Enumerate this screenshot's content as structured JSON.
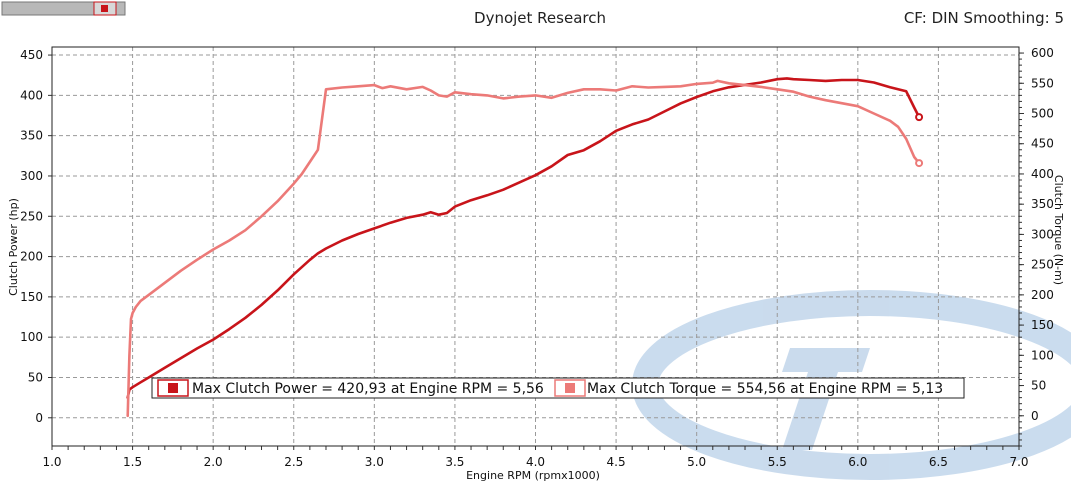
{
  "header": {
    "title": "Dynojet Research",
    "cf_info": "CF: DIN Smoothing: 5"
  },
  "colors": {
    "power": "#c8141a",
    "torque": "#ec7a78",
    "grid": "#9a9a9a",
    "watermark": "#9fbfe0",
    "plot_bg": "#ffffff"
  },
  "chart_data": {
    "type": "line",
    "xlabel": "Engine RPM (rpmx1000)",
    "ylabel": "Clutch Power (hp)",
    "y2label": "Clutch Torque (N-m)",
    "xlim": [
      1.0,
      7.0
    ],
    "ylim": [
      -35,
      460
    ],
    "y2lim": [
      -50,
      610
    ],
    "x_ticks": [
      "1.0",
      "1.5",
      "2.0",
      "2.5",
      "3.0",
      "3.5",
      "4.0",
      "4.5",
      "5.0",
      "5.5",
      "6.0",
      "6.5",
      "7.0"
    ],
    "y_ticks": [
      "0",
      "50",
      "100",
      "150",
      "200",
      "250",
      "300",
      "350",
      "400",
      "450"
    ],
    "y2_ticks": [
      "0",
      "50",
      "100",
      "150",
      "200",
      "250",
      "300",
      "350",
      "400",
      "450",
      "500",
      "550",
      "600"
    ],
    "grid": true,
    "series": [
      {
        "name": "Max Clutch Power",
        "axis": "left",
        "x": [
          1.47,
          1.48,
          1.5,
          1.55,
          1.6,
          1.7,
          1.8,
          1.9,
          2.0,
          2.1,
          2.2,
          2.3,
          2.4,
          2.5,
          2.6,
          2.65,
          2.7,
          2.8,
          2.9,
          3.0,
          3.1,
          3.2,
          3.3,
          3.35,
          3.4,
          3.45,
          3.5,
          3.6,
          3.7,
          3.8,
          3.9,
          4.0,
          4.1,
          4.2,
          4.3,
          4.4,
          4.5,
          4.6,
          4.7,
          4.8,
          4.9,
          5.0,
          5.1,
          5.2,
          5.3,
          5.4,
          5.5,
          5.56,
          5.6,
          5.7,
          5.8,
          5.9,
          6.0,
          6.1,
          6.2,
          6.3,
          6.35,
          6.38
        ],
        "values": [
          25,
          35,
          38,
          44,
          50,
          62,
          74,
          86,
          97,
          110,
          124,
          140,
          158,
          178,
          196,
          204,
          210,
          220,
          228,
          235,
          242,
          248,
          252,
          255,
          252,
          254,
          262,
          270,
          276,
          283,
          292,
          301,
          312,
          326,
          332,
          343,
          356,
          364,
          370,
          380,
          390,
          398,
          405,
          410,
          413,
          416,
          420,
          421,
          420,
          419,
          418,
          419,
          419,
          416,
          410,
          405,
          385,
          373
        ],
        "max_label": "Max Clutch Power = 420,93 at Engine RPM = 5,56"
      },
      {
        "name": "Max Clutch Torque",
        "axis": "right",
        "x": [
          1.47,
          1.48,
          1.49,
          1.5,
          1.52,
          1.55,
          1.6,
          1.7,
          1.8,
          1.9,
          2.0,
          2.1,
          2.2,
          2.3,
          2.4,
          2.5,
          2.55,
          2.6,
          2.65,
          2.7,
          2.8,
          2.9,
          3.0,
          3.05,
          3.1,
          3.2,
          3.3,
          3.35,
          3.4,
          3.45,
          3.5,
          3.6,
          3.7,
          3.8,
          3.9,
          4.0,
          4.1,
          4.2,
          4.3,
          4.4,
          4.5,
          4.6,
          4.7,
          4.8,
          4.9,
          5.0,
          5.1,
          5.13,
          5.2,
          5.3,
          5.4,
          5.5,
          5.6,
          5.7,
          5.8,
          5.9,
          6.0,
          6.1,
          6.2,
          6.25,
          6.3,
          6.35,
          6.38
        ],
        "values": [
          0,
          100,
          160,
          170,
          180,
          190,
          200,
          220,
          240,
          258,
          275,
          290,
          307,
          330,
          355,
          384,
          400,
          420,
          440,
          540,
          543,
          545,
          547,
          542,
          545,
          540,
          544,
          538,
          530,
          528,
          535,
          532,
          530,
          525,
          528,
          530,
          526,
          534,
          540,
          540,
          538,
          545,
          543,
          544,
          545,
          549,
          551,
          554,
          550,
          547,
          544,
          540,
          536,
          528,
          522,
          517,
          512,
          500,
          488,
          478,
          458,
          428,
          418
        ],
        "max_label": "Max Clutch Torque = 554,56 at Engine RPM = 5,13"
      }
    ]
  }
}
